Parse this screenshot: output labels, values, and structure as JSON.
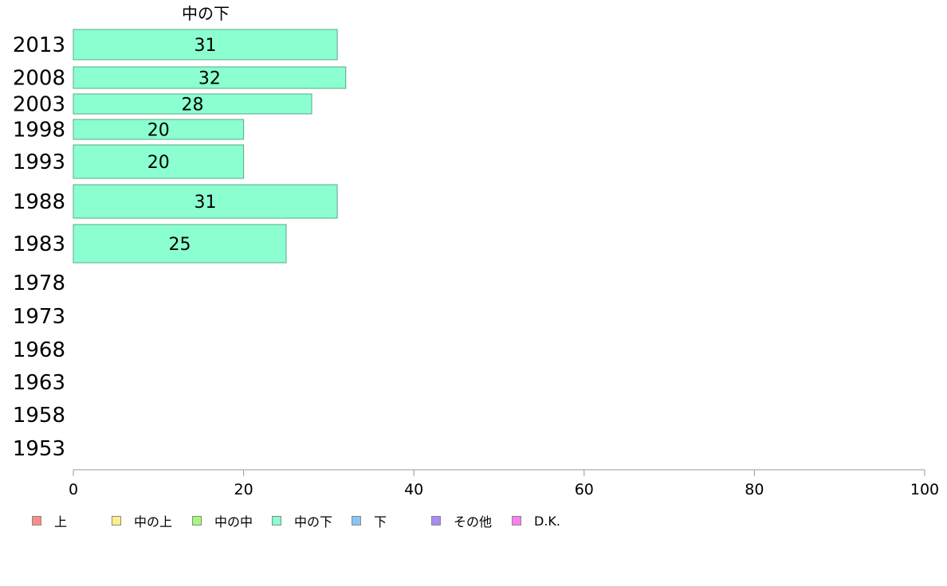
{
  "chart_data": {
    "type": "bar",
    "orientation": "horizontal",
    "title": "中の下",
    "categories": [
      "2013",
      "2008",
      "2003",
      "1998",
      "1993",
      "1988",
      "1983",
      "1978",
      "1973",
      "1968",
      "1963",
      "1958",
      "1953"
    ],
    "values": [
      31,
      32,
      28,
      20,
      20,
      31,
      25,
      null,
      null,
      null,
      null,
      null,
      null
    ],
    "data_labels": [
      "31",
      "32",
      "28",
      "20",
      "20",
      "31",
      "25",
      "",
      "",
      "",
      "",
      "",
      ""
    ],
    "xlim": [
      0,
      100
    ],
    "x_ticks": [
      "0",
      "20",
      "40",
      "60",
      "80",
      "100"
    ],
    "bar_color": "#8bffd0",
    "grid": false,
    "legend_position": "bottom",
    "legend": [
      {
        "label": "上",
        "color": "#ff8a8a"
      },
      {
        "label": "中の上",
        "color": "#ffef8a"
      },
      {
        "label": "中の中",
        "color": "#a6f77e"
      },
      {
        "label": "中の下",
        "color": "#8bffd0"
      },
      {
        "label": "下",
        "color": "#8ac4f7"
      },
      {
        "label": "その他",
        "color": "#a68af7"
      },
      {
        "label": "D.K.",
        "color": "#ff7ef0"
      }
    ]
  }
}
